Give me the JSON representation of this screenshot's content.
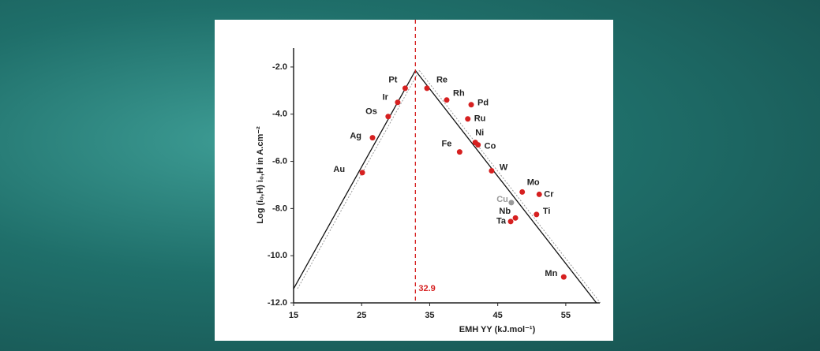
{
  "chart_data": {
    "type": "scatter",
    "x_label": "EMH YY (kJ.mol⁻¹)",
    "y_label": "Log (i₀,H)  i₀,H in A.cm⁻²",
    "xlim": [
      15,
      60
    ],
    "xticks": [
      15,
      25,
      35,
      45,
      55
    ],
    "ylim": [
      -12,
      -1.2
    ],
    "yticks": [
      {
        "value": -2,
        "label": "-2.0"
      },
      {
        "value": -4,
        "label": "-4.0"
      },
      {
        "value": -6,
        "label": "-6.0"
      },
      {
        "value": -8,
        "label": "-8.0"
      },
      {
        "value": -10,
        "label": "-10.0"
      },
      {
        "value": -12,
        "label": "-12.0"
      }
    ],
    "threshold": {
      "value": 32.9,
      "label": "32.9",
      "color": "#d62020"
    },
    "fit_lines": [
      {
        "x": [
          15,
          32.9
        ],
        "y": [
          -11.4,
          -2.15
        ],
        "color": "#111111"
      },
      {
        "x": [
          32.9,
          59.5
        ],
        "y": [
          -2.15,
          -12
        ],
        "color": "#111111"
      }
    ],
    "points": [
      {
        "label": "Au",
        "x": 25.1,
        "y": -6.48,
        "color": "#d62020"
      },
      {
        "label": "Ag",
        "x": 26.6,
        "y": -5.0,
        "color": "#d62020"
      },
      {
        "label": "Os",
        "x": 28.9,
        "y": -4.1,
        "color": "#d62020"
      },
      {
        "label": "Ir",
        "x": 30.3,
        "y": -3.5,
        "color": "#d62020"
      },
      {
        "label": "Pt",
        "x": 31.4,
        "y": -2.9,
        "color": "#d62020"
      },
      {
        "label": "Re",
        "x": 34.6,
        "y": -2.9,
        "color": "#d62020"
      },
      {
        "label": "Rh",
        "x": 37.5,
        "y": -3.4,
        "color": "#d62020"
      },
      {
        "label": "Pd",
        "x": 41.1,
        "y": -3.6,
        "color": "#d62020"
      },
      {
        "label": "Ru",
        "x": 40.6,
        "y": -4.2,
        "color": "#d62020"
      },
      {
        "label": "Ni",
        "x": 41.7,
        "y": -5.2,
        "color": "#d62020"
      },
      {
        "label": "Co",
        "x": 42.1,
        "y": -5.3,
        "color": "#d62020"
      },
      {
        "label": "Fe",
        "x": 39.4,
        "y": -5.6,
        "color": "#d62020"
      },
      {
        "label": "W",
        "x": 44.1,
        "y": -6.4,
        "color": "#d62020"
      },
      {
        "label": "Mo",
        "x": 48.6,
        "y": -7.3,
        "color": "#d62020"
      },
      {
        "label": "Cr",
        "x": 51.1,
        "y": -7.4,
        "color": "#d62020"
      },
      {
        "label": "Cu",
        "x": 47.0,
        "y": -7.75,
        "color": "#999999"
      },
      {
        "label": "Nb",
        "x": 47.6,
        "y": -8.4,
        "color": "#d62020"
      },
      {
        "label": "Ta",
        "x": 46.9,
        "y": -8.55,
        "color": "#d62020"
      },
      {
        "label": "Ti",
        "x": 50.7,
        "y": -8.25,
        "color": "#d62020"
      },
      {
        "label": "Mn",
        "x": 54.7,
        "y": -10.9,
        "color": "#d62020"
      }
    ]
  }
}
